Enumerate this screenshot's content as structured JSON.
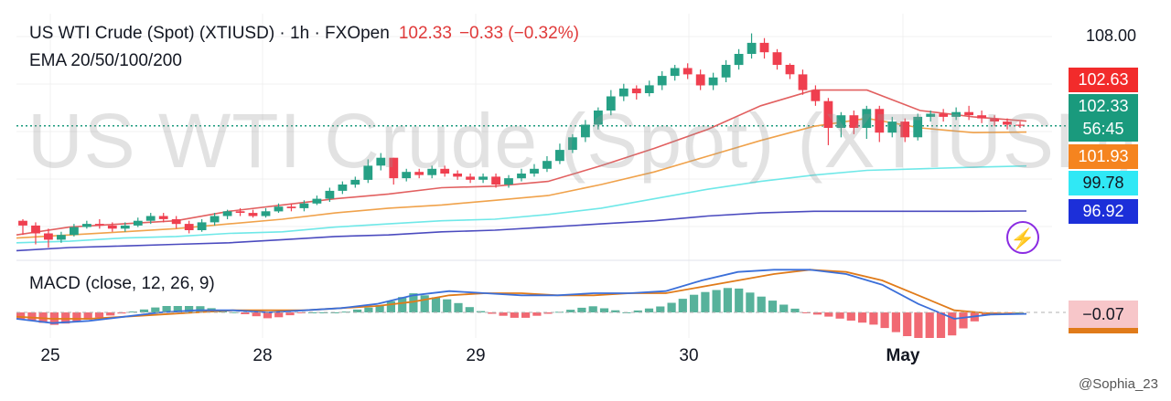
{
  "header": {
    "symbol_line": "US WTI Crude (Spot) (XTIUSD) · 1h · FXOpen",
    "price": "102.33",
    "change": "−0.33 (−0.32%)",
    "indicator": "EMA 20/50/100/200"
  },
  "watermark": "US WTI Crude (Spot) (XTIUSD)",
  "macd_label": "MACD (close, 12, 26, 9)",
  "price_axis": {
    "top_label": "108.00",
    "badges": [
      {
        "text": "102.63",
        "color": "#f22b2b",
        "text_color": "#ffffff"
      },
      {
        "text": "102.33",
        "color": "#1a9a7d",
        "text_color": "#ffffff"
      },
      {
        "text": "56:45",
        "color": "#1a9a7d",
        "text_color": "#ffffff"
      },
      {
        "text": "101.93",
        "color": "#f5841f",
        "text_color": "#ffffff"
      },
      {
        "text": "99.78",
        "color": "#30e8f5",
        "text_color": "#131722"
      },
      {
        "text": "96.92",
        "color": "#1c2fd9",
        "text_color": "#ffffff"
      }
    ],
    "macd_badge": {
      "text": "−0.07",
      "color": "#f7c6c9",
      "text_color": "#131722"
    }
  },
  "x_labels": [
    "25",
    "28",
    "29",
    "30",
    "May"
  ],
  "credit": "@Sophia_23",
  "bolt_icon": "lightning-icon",
  "colors": {
    "up": "#26a085",
    "down": "#ef3f4f",
    "ema20": "#e26060",
    "ema50": "#f0a24b",
    "ema100": "#6fe8e8",
    "ema200": "#4b4bbf",
    "macd": "#3b6fd9",
    "signal": "#e07b1a"
  },
  "chart_data": {
    "type": "candlestick",
    "title": "US WTI Crude (Spot) (XTIUSD) · 1h · FXOpen",
    "x_tick_labels": [
      "25",
      "28",
      "29",
      "30",
      "May"
    ],
    "y_tick_labels": [
      "108.00"
    ],
    "ylim": [
      94.0,
      109.0
    ],
    "last_price": 102.33,
    "price_line": 102.33,
    "emas": {
      "EMA 20": [
        95.4,
        95.9,
        96.1,
        96.3,
        96.9,
        97.3,
        97.7,
        98.0,
        98.4,
        98.5,
        98.8,
        99.8,
        100.9,
        102.1,
        103.6,
        104.6,
        104.6,
        103.3,
        102.9,
        102.63
      ],
      "EMA 50": [
        95.2,
        95.4,
        95.6,
        95.8,
        96.1,
        96.4,
        96.8,
        97.1,
        97.3,
        97.6,
        97.9,
        98.6,
        99.4,
        100.4,
        101.4,
        102.3,
        102.8,
        102.2,
        101.9,
        101.93
      ],
      "EMA 100": [
        94.9,
        95.0,
        95.2,
        95.3,
        95.5,
        95.6,
        95.9,
        96.1,
        96.3,
        96.4,
        96.7,
        97.1,
        97.7,
        98.3,
        98.8,
        99.2,
        99.5,
        99.6,
        99.7,
        99.78
      ],
      "EMA 200": [
        94.4,
        94.6,
        94.7,
        94.8,
        94.9,
        95.1,
        95.3,
        95.4,
        95.6,
        95.7,
        95.9,
        96.1,
        96.3,
        96.6,
        96.8,
        96.9,
        96.9,
        96.9,
        96.9,
        96.92
      ]
    },
    "candles": [
      [
        96.3,
        96.0,
        96.4,
        95.4
      ],
      [
        96.0,
        95.5,
        96.2,
        94.8
      ],
      [
        95.5,
        95.1,
        95.8,
        94.6
      ],
      [
        95.1,
        95.4,
        95.6,
        94.9
      ],
      [
        95.4,
        95.9,
        96.1,
        95.3
      ],
      [
        95.9,
        96.1,
        96.3,
        95.8
      ],
      [
        96.1,
        96.0,
        96.4,
        95.8
      ],
      [
        96.0,
        95.8,
        96.2,
        95.6
      ],
      [
        95.8,
        96.0,
        96.2,
        95.6
      ],
      [
        96.0,
        96.3,
        96.5,
        95.9
      ],
      [
        96.3,
        96.6,
        96.8,
        96.1
      ],
      [
        96.6,
        96.4,
        96.8,
        96.2
      ],
      [
        96.4,
        96.1,
        96.6,
        95.8
      ],
      [
        96.1,
        95.7,
        96.3,
        95.5
      ],
      [
        95.7,
        96.2,
        96.4,
        95.6
      ],
      [
        96.2,
        96.6,
        96.8,
        96.0
      ],
      [
        96.6,
        96.9,
        97.0,
        96.4
      ],
      [
        96.9,
        96.8,
        97.1,
        96.6
      ],
      [
        96.8,
        96.6,
        97.0,
        96.5
      ],
      [
        96.6,
        96.9,
        97.1,
        96.5
      ],
      [
        96.9,
        97.2,
        97.4,
        96.8
      ],
      [
        97.2,
        97.1,
        97.4,
        96.9
      ],
      [
        97.1,
        97.4,
        97.6,
        96.9
      ],
      [
        97.4,
        97.7,
        97.9,
        97.3
      ],
      [
        97.7,
        98.2,
        98.4,
        97.5
      ],
      [
        98.2,
        98.6,
        98.8,
        98.0
      ],
      [
        98.6,
        98.9,
        99.1,
        98.4
      ],
      [
        98.9,
        99.8,
        100.2,
        98.7
      ],
      [
        99.8,
        100.3,
        100.6,
        99.5
      ],
      [
        100.3,
        99.0,
        100.3,
        98.6
      ],
      [
        99.0,
        99.4,
        99.6,
        98.8
      ],
      [
        99.4,
        99.2,
        99.6,
        99.0
      ],
      [
        99.2,
        99.6,
        99.8,
        99.0
      ],
      [
        99.6,
        99.3,
        99.8,
        99.1
      ],
      [
        99.3,
        99.1,
        99.5,
        98.9
      ],
      [
        99.1,
        98.9,
        99.3,
        98.7
      ],
      [
        98.9,
        99.1,
        99.3,
        98.7
      ],
      [
        99.1,
        98.6,
        99.3,
        98.4
      ],
      [
        98.6,
        99.0,
        99.2,
        98.4
      ],
      [
        99.0,
        99.3,
        99.6,
        98.8
      ],
      [
        99.3,
        99.6,
        99.9,
        99.1
      ],
      [
        99.6,
        100.1,
        100.4,
        99.4
      ],
      [
        100.1,
        100.8,
        101.2,
        99.9
      ],
      [
        100.8,
        101.6,
        101.8,
        100.6
      ],
      [
        101.6,
        102.4,
        102.7,
        101.3
      ],
      [
        102.4,
        103.3,
        103.5,
        102.1
      ],
      [
        103.3,
        104.2,
        104.6,
        103.0
      ],
      [
        104.2,
        104.7,
        105.0,
        103.9
      ],
      [
        104.7,
        104.4,
        104.9,
        104.0
      ],
      [
        104.4,
        104.9,
        105.2,
        104.2
      ],
      [
        104.9,
        105.5,
        105.8,
        104.6
      ],
      [
        105.5,
        106.0,
        106.2,
        105.2
      ],
      [
        106.0,
        105.6,
        106.3,
        105.3
      ],
      [
        105.6,
        104.9,
        105.9,
        104.6
      ],
      [
        104.9,
        105.4,
        105.7,
        104.6
      ],
      [
        105.4,
        106.2,
        106.5,
        105.1
      ],
      [
        106.2,
        106.9,
        107.2,
        105.9
      ],
      [
        106.9,
        107.6,
        108.2,
        106.6
      ],
      [
        107.6,
        107.0,
        107.9,
        106.6
      ],
      [
        107.0,
        106.2,
        107.2,
        105.9
      ],
      [
        106.2,
        105.6,
        106.3,
        105.3
      ],
      [
        105.6,
        104.6,
        105.9,
        104.3
      ],
      [
        104.6,
        103.9,
        104.9,
        103.6
      ],
      [
        103.9,
        102.2,
        104.1,
        101.1
      ],
      [
        102.2,
        103.0,
        103.2,
        101.6
      ],
      [
        103.0,
        102.2,
        103.3,
        101.8
      ],
      [
        102.2,
        103.4,
        103.6,
        101.5
      ],
      [
        103.4,
        101.9,
        103.6,
        101.3
      ],
      [
        101.9,
        102.6,
        102.9,
        101.6
      ],
      [
        102.6,
        101.6,
        102.8,
        101.3
      ],
      [
        101.6,
        102.9,
        103.1,
        101.4
      ],
      [
        102.9,
        103.1,
        103.3,
        102.6
      ],
      [
        103.1,
        102.9,
        103.4,
        102.6
      ],
      [
        102.9,
        103.2,
        103.5,
        102.7
      ],
      [
        103.2,
        103.0,
        103.6,
        102.7
      ],
      [
        103.0,
        102.8,
        103.3,
        102.5
      ],
      [
        102.8,
        102.6,
        103.0,
        102.3
      ],
      [
        102.6,
        102.4,
        102.8,
        102.1
      ],
      [
        102.4,
        102.33,
        102.6,
        102.2
      ]
    ],
    "macd_panel": {
      "label": "MACD (close, 12, 26, 9)",
      "last_value": -0.07,
      "macd": [
        -0.3,
        -0.5,
        -0.4,
        -0.2,
        0.0,
        0.1,
        0.1,
        0.0,
        0.1,
        0.2,
        0.4,
        0.8,
        1.0,
        0.9,
        0.8,
        0.8,
        0.9,
        0.9,
        1.0,
        1.5,
        1.9,
        2.0,
        2.0,
        1.8,
        1.3,
        0.4,
        -0.3,
        -0.1,
        -0.07
      ],
      "signal": [
        -0.2,
        -0.3,
        -0.3,
        -0.2,
        -0.1,
        0.0,
        0.1,
        0.1,
        0.1,
        0.2,
        0.3,
        0.5,
        0.8,
        0.9,
        0.9,
        0.8,
        0.8,
        0.9,
        0.9,
        1.2,
        1.5,
        1.8,
        2.0,
        1.9,
        1.5,
        0.8,
        0.1,
        -0.05,
        -0.07
      ]
    }
  }
}
